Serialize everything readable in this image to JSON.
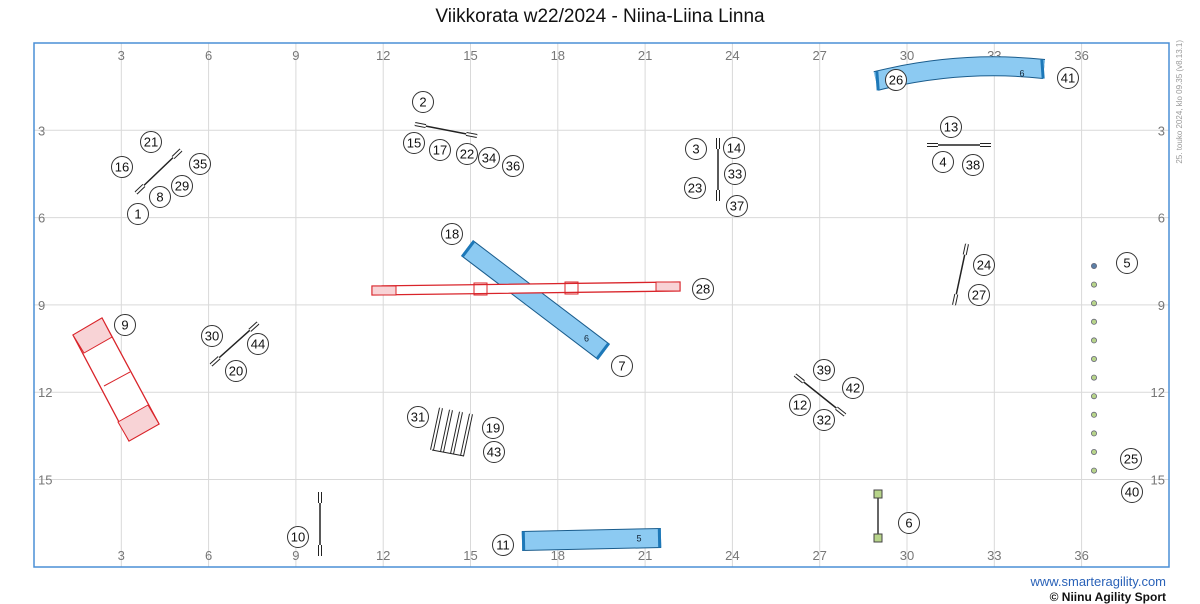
{
  "title": "Viikkorata w22/2024 - Niina-Liina Linna",
  "side_note": "25. touko 2024, klo 09.35  (v8.13.1)",
  "footer": {
    "site": "www.smarteragility.com",
    "copyright": "© Niinu Agility Sport"
  },
  "colors": {
    "frame": "#4a8fd6",
    "grid": "#d9d9d9",
    "tunnel": "#8ccaf2",
    "tunnel_end": "#1d78b8",
    "contact": "#d9242a",
    "contact_fill": "#f8d3d6",
    "weave_pole": "#8fa0a0",
    "table_block": "#b7d48a"
  },
  "grid": {
    "x_ticks": [
      "3",
      "6",
      "9",
      "12",
      "15",
      "18",
      "21",
      "24",
      "27",
      "30",
      "33",
      "36"
    ],
    "y_ticks": [
      "3",
      "6",
      "9",
      "12",
      "15"
    ]
  },
  "obstacles": [
    {
      "id": "jump-a",
      "type": "jump",
      "numbers": [
        "1",
        "8",
        "16",
        "21",
        "29",
        "35"
      ]
    },
    {
      "id": "jump-b",
      "type": "jump",
      "numbers": [
        "2",
        "15",
        "17",
        "22",
        "34",
        "36"
      ]
    },
    {
      "id": "jump-c",
      "type": "jump",
      "numbers": [
        "3",
        "14",
        "23",
        "33",
        "37"
      ]
    },
    {
      "id": "jump-d",
      "type": "jump",
      "numbers": [
        "4",
        "13",
        "38"
      ]
    },
    {
      "id": "weave",
      "type": "weave_poles",
      "numbers": [
        "5",
        "25",
        "40"
      ]
    },
    {
      "id": "table",
      "type": "table",
      "numbers": [
        "6"
      ]
    },
    {
      "id": "tunnel-diag",
      "type": "tunnel",
      "label": "6",
      "numbers": [
        "7",
        "18"
      ]
    },
    {
      "id": "a-frame",
      "type": "a_frame",
      "numbers": [
        "9"
      ]
    },
    {
      "id": "jump-e",
      "type": "jump",
      "numbers": [
        "10"
      ]
    },
    {
      "id": "tunnel-bottom",
      "type": "tunnel",
      "label": "5",
      "numbers": [
        "11"
      ]
    },
    {
      "id": "jump-f",
      "type": "jump",
      "numbers": [
        "12",
        "32",
        "39",
        "42"
      ]
    },
    {
      "id": "long-jump",
      "type": "long_jump",
      "numbers": [
        "19",
        "31",
        "43"
      ]
    },
    {
      "id": "jump-g",
      "type": "jump",
      "numbers": [
        "20",
        "30",
        "44"
      ]
    },
    {
      "id": "jump-h",
      "type": "jump",
      "numbers": [
        "24",
        "27"
      ]
    },
    {
      "id": "tunnel-top",
      "type": "tunnel",
      "label": "6",
      "numbers": [
        "26",
        "41"
      ]
    },
    {
      "id": "dog-walk",
      "type": "dog_walk",
      "numbers": [
        "28"
      ]
    }
  ]
}
